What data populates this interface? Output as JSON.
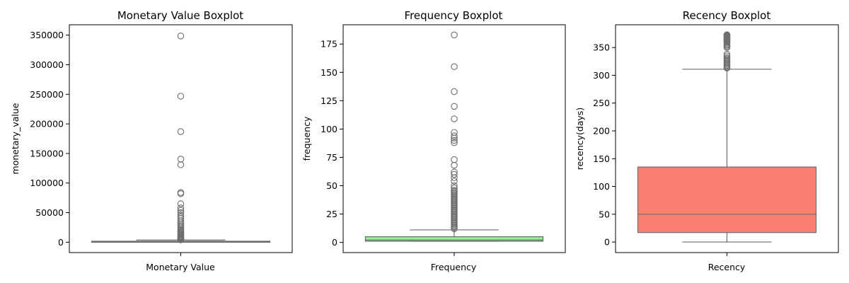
{
  "chart_data": [
    {
      "type": "box",
      "title": "Monetary Value Boxplot",
      "xlabel": "",
      "ylabel": "monetary_value",
      "categories": [
        "Monetary Value"
      ],
      "ylim": [
        -17500,
        367500
      ],
      "yticks": [
        0,
        50000,
        100000,
        150000,
        200000,
        250000,
        300000,
        350000
      ],
      "box": {
        "q1": 300,
        "median": 700,
        "q3": 1700,
        "whisker_low": 0,
        "whisker_high": 3700
      },
      "outliers": [
        348500,
        246800,
        187000,
        140500,
        131000,
        84000,
        82000,
        65000,
        58000,
        54000,
        50000,
        46000,
        43000,
        40000,
        36000,
        33000,
        30000,
        28000,
        25500,
        23000,
        21000,
        19500,
        18000,
        16500,
        15000,
        13500,
        12500,
        11000,
        10000,
        9000,
        8000,
        7200,
        6500,
        5800,
        5200,
        4800,
        4300,
        4000
      ],
      "color": "#c0c0c0",
      "line_color": "#6e6e6e"
    },
    {
      "type": "box",
      "title": "Frequency Boxplot",
      "xlabel": "",
      "ylabel": "frequency",
      "categories": [
        "Frequency"
      ],
      "ylim": [
        -9,
        192
      ],
      "yticks": [
        0,
        25,
        50,
        75,
        100,
        125,
        150,
        175
      ],
      "box": {
        "q1": 1,
        "median": 2,
        "q3": 5,
        "whisker_low": 1,
        "whisker_high": 11
      },
      "outliers": [
        183,
        155,
        133,
        120,
        109,
        97,
        94,
        92,
        90,
        88,
        73,
        68,
        62,
        60,
        57,
        54,
        50,
        48,
        46,
        45,
        44,
        43,
        42,
        41,
        40,
        39,
        38,
        37,
        36,
        35,
        34,
        33,
        32,
        31,
        30,
        29,
        28,
        27,
        26,
        25,
        24,
        23,
        22,
        21,
        20,
        19,
        18,
        17,
        16,
        15,
        14,
        13,
        12
      ],
      "color": "#90ee90",
      "line_color": "#6e6e6e"
    },
    {
      "type": "box",
      "title": "Recency Boxplot",
      "xlabel": "",
      "ylabel": "recency(days)",
      "categories": [
        "Recency"
      ],
      "ylim": [
        -19,
        391
      ],
      "yticks": [
        0,
        50,
        100,
        150,
        200,
        250,
        300,
        350
      ],
      "box": {
        "q1": 17,
        "median": 50,
        "q3": 135,
        "whisker_low": 0,
        "whisker_high": 311
      },
      "outliers": [
        373,
        372,
        371,
        370,
        369,
        368,
        367,
        366,
        365,
        364,
        363,
        362,
        361,
        360,
        358,
        356,
        354,
        352,
        350,
        338,
        335,
        332,
        330,
        328,
        326,
        324,
        322,
        320,
        318,
        316,
        314,
        313
      ],
      "color": "#fa8072",
      "line_color": "#6e6e6e"
    }
  ]
}
